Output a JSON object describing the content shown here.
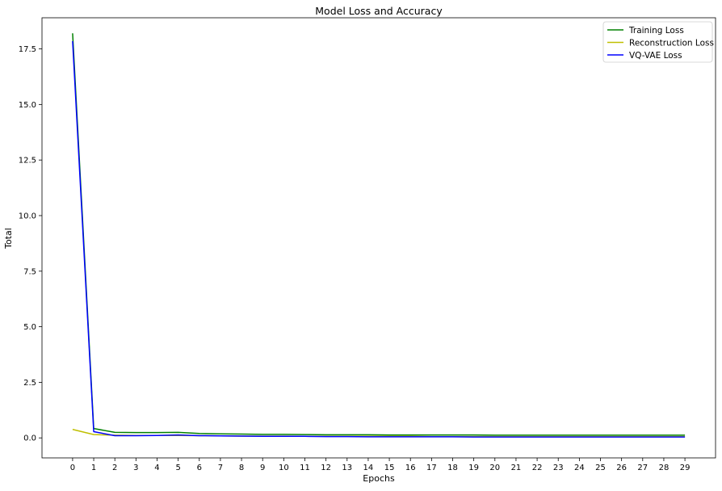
{
  "chart_data": {
    "type": "line",
    "title": "Model Loss and Accuracy",
    "xlabel": "Epochs",
    "ylabel": "Total",
    "x": [
      0,
      1,
      2,
      3,
      4,
      5,
      6,
      7,
      8,
      9,
      10,
      11,
      12,
      13,
      14,
      15,
      16,
      17,
      18,
      19,
      20,
      21,
      22,
      23,
      24,
      25,
      26,
      27,
      28,
      29
    ],
    "xlim": [
      -1.45,
      30.45
    ],
    "ylim": [
      -0.9,
      18.9
    ],
    "yticks": [
      0.0,
      2.5,
      5.0,
      7.5,
      10.0,
      12.5,
      15.0,
      17.5
    ],
    "ytick_labels": [
      "0.0",
      "2.5",
      "5.0",
      "7.5",
      "10.0",
      "12.5",
      "15.0",
      "17.5"
    ],
    "xtick_labels": [
      "0",
      "1",
      "2",
      "3",
      "4",
      "5",
      "6",
      "7",
      "8",
      "9",
      "10",
      "11",
      "12",
      "13",
      "14",
      "15",
      "16",
      "17",
      "18",
      "19",
      "20",
      "21",
      "22",
      "23",
      "24",
      "25",
      "26",
      "27",
      "28",
      "29"
    ],
    "grid": false,
    "legend_position": "top-right",
    "series": [
      {
        "name": "Training Loss",
        "color": "#008000",
        "values": [
          18.2,
          0.42,
          0.25,
          0.24,
          0.24,
          0.25,
          0.2,
          0.18,
          0.17,
          0.16,
          0.16,
          0.15,
          0.14,
          0.14,
          0.14,
          0.13,
          0.13,
          0.13,
          0.13,
          0.13,
          0.12,
          0.12,
          0.12,
          0.12,
          0.12,
          0.12,
          0.12,
          0.12,
          0.12,
          0.12
        ]
      },
      {
        "name": "Reconstruction Loss",
        "color": "#bfbf00",
        "values": [
          0.38,
          0.15,
          0.12,
          0.11,
          0.11,
          0.11,
          0.1,
          0.09,
          0.08,
          0.08,
          0.08,
          0.07,
          0.07,
          0.07,
          0.07,
          0.07,
          0.07,
          0.06,
          0.06,
          0.06,
          0.06,
          0.06,
          0.06,
          0.06,
          0.06,
          0.06,
          0.06,
          0.06,
          0.06,
          0.06
        ]
      },
      {
        "name": "VQ-VAE Loss",
        "color": "#0000ff",
        "values": [
          17.85,
          0.28,
          0.1,
          0.1,
          0.11,
          0.13,
          0.1,
          0.09,
          0.08,
          0.07,
          0.07,
          0.07,
          0.06,
          0.06,
          0.05,
          0.05,
          0.05,
          0.05,
          0.05,
          0.04,
          0.04,
          0.04,
          0.04,
          0.04,
          0.04,
          0.04,
          0.04,
          0.04,
          0.04,
          0.04
        ]
      }
    ]
  }
}
